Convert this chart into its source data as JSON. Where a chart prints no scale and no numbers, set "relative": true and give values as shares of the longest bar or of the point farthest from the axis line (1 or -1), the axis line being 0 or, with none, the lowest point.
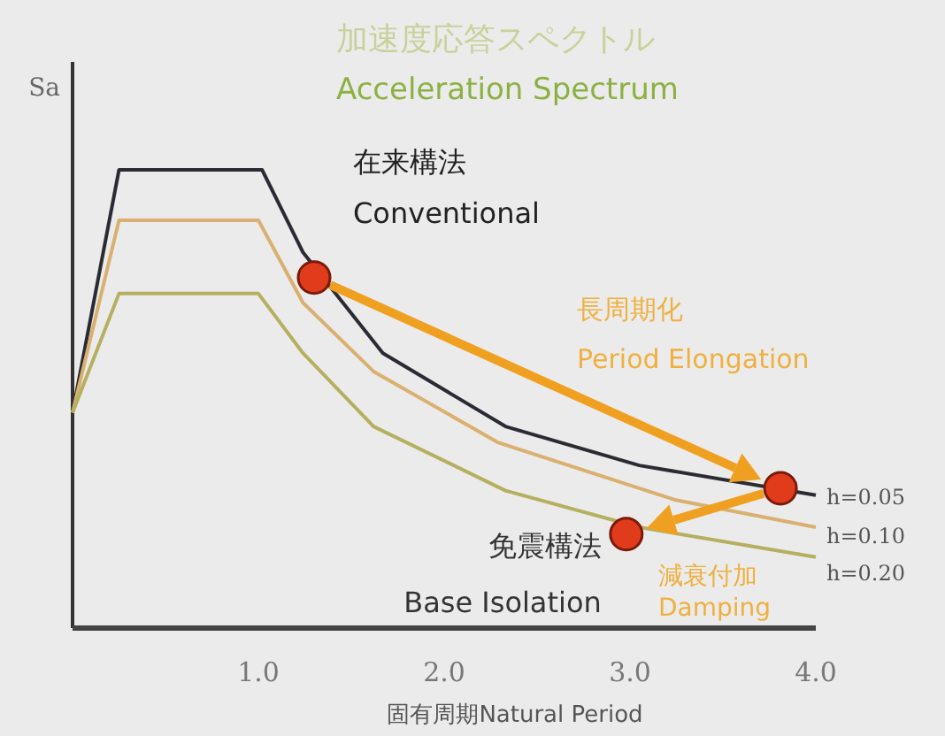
{
  "chart_data": {
    "type": "line",
    "title": "加速度応答スペクトル",
    "subtitle": "Acceleration Spectrum",
    "ylabel": "Sa",
    "xlabel": "固有周期Natural Period",
    "relative": true,
    "xlim": [
      0,
      4
    ],
    "xticks": [
      {
        "value": 1,
        "label": "1.0"
      },
      {
        "value": 2,
        "label": "2.0"
      },
      {
        "value": 3,
        "label": "3.0"
      },
      {
        "value": 4,
        "label": "4.0"
      }
    ],
    "series": [
      {
        "name": "h=0.05",
        "color": "#2b2b33",
        "x": [
          0,
          0.25,
          1.02,
          1.24,
          1.67,
          2.33,
          3.05,
          4.0
        ],
        "values": [
          0.47,
          1,
          1,
          0.82,
          0.6,
          0.44,
          0.355,
          0.29
        ]
      },
      {
        "name": "h=0.10",
        "color": "#d9b070",
        "x": [
          0,
          0.25,
          1.0,
          1.24,
          1.62,
          2.29,
          3.24,
          4.0
        ],
        "values": [
          0.47,
          0.89,
          0.89,
          0.71,
          0.56,
          0.405,
          0.28,
          0.22
        ]
      },
      {
        "name": "h=0.20",
        "color": "#b5b060",
        "x": [
          0,
          0.25,
          1.0,
          1.24,
          1.62,
          2.33,
          3.05,
          4.0
        ],
        "values": [
          0.47,
          0.73,
          0.73,
          0.6,
          0.44,
          0.3,
          0.22,
          0.155
        ]
      },
      {
        "type": "scatter",
        "color": "#e03c1c",
        "marker": "circle",
        "x": [
          1.3,
          3.81,
          2.98
        ],
        "values": [
          0.765,
          0.305,
          0.205
        ]
      }
    ],
    "annotations": [
      {
        "text": "在来構法\nConventional",
        "x": 1.3,
        "y": 0.765
      },
      {
        "text": "免震構法\nBase Isolation",
        "x": 2.98,
        "y": 0.205
      },
      "長周期化\nPeriod Elongation",
      "減衰付加\nDamping"
    ]
  }
}
